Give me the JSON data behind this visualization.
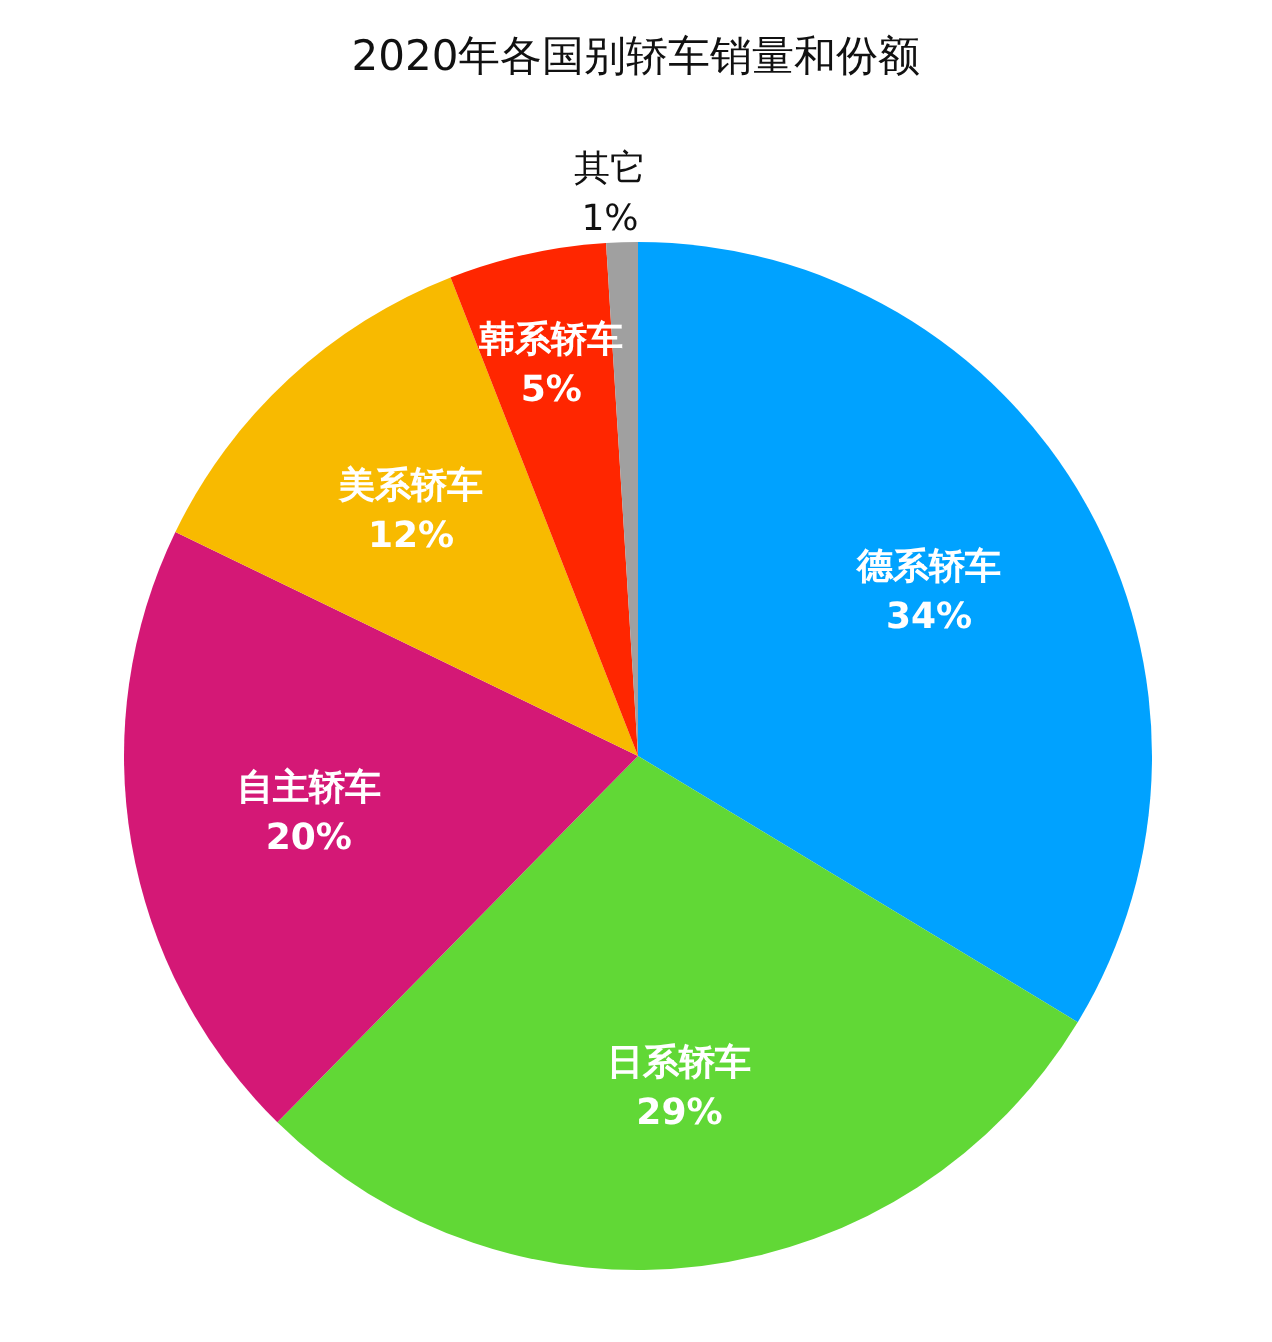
{
  "chart_data": {
    "type": "pie",
    "title": "2020年各国别轿车销量和份额",
    "categories": [
      "德系轿车",
      "日系轿车",
      "自主轿车",
      "美系轿车",
      "韩系轿车",
      "其它"
    ],
    "values": [
      34,
      29,
      20,
      12,
      5,
      1
    ],
    "value_labels": [
      "34%",
      "29%",
      "20%",
      "12%",
      "5%",
      "1%"
    ],
    "colors": [
      "#00a2ff",
      "#61d836",
      "#d41876",
      "#f8ba00",
      "#ff2600",
      "#a0a0a0"
    ]
  }
}
